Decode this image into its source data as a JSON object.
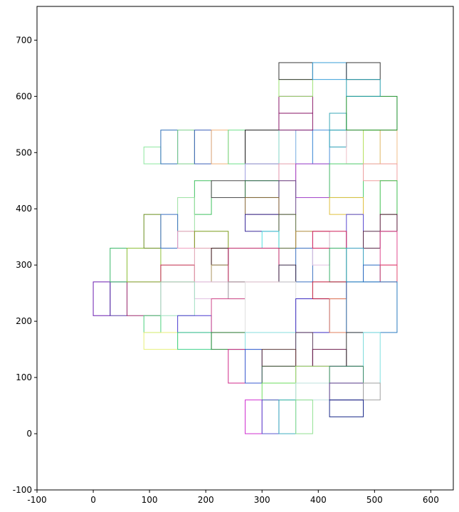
{
  "chart_data": {
    "type": "rectangles",
    "title": "",
    "xlabel": "",
    "ylabel": "",
    "xlim": [
      -100,
      640
    ],
    "ylim": [
      -100,
      760
    ],
    "xticks": [
      -100,
      0,
      100,
      200,
      300,
      400,
      500,
      600
    ],
    "yticks": [
      -100,
      0,
      100,
      200,
      300,
      400,
      500,
      600,
      700
    ],
    "grid": false,
    "rects": [
      {
        "x": 0,
        "y": 210,
        "w": 30,
        "h": 60,
        "color": "#6a1bb0"
      },
      {
        "x": 30,
        "y": 210,
        "w": 30,
        "h": 60,
        "color": "#5b3ea8"
      },
      {
        "x": 60,
        "y": 210,
        "w": 60,
        "h": 60,
        "color": "#9c2a6e"
      },
      {
        "x": 30,
        "y": 270,
        "w": 30,
        "h": 60,
        "color": "#3cb86a"
      },
      {
        "x": 60,
        "y": 270,
        "w": 60,
        "h": 60,
        "color": "#8fbf3a"
      },
      {
        "x": 90,
        "y": 330,
        "w": 30,
        "h": 60,
        "color": "#6a8f1e"
      },
      {
        "x": 90,
        "y": 180,
        "w": 30,
        "h": 30,
        "color": "#4bd17e"
      },
      {
        "x": 90,
        "y": 150,
        "w": 60,
        "h": 30,
        "color": "#e8f07a"
      },
      {
        "x": 90,
        "y": 480,
        "w": 30,
        "h": 30,
        "color": "#8ee8a0"
      },
      {
        "x": 120,
        "y": 480,
        "w": 30,
        "h": 60,
        "color": "#2e6fb8"
      },
      {
        "x": 150,
        "y": 480,
        "w": 30,
        "h": 60,
        "color": "#7ccf8a"
      },
      {
        "x": 180,
        "y": 480,
        "w": 30,
        "h": 60,
        "color": "#3a5fb8"
      },
      {
        "x": 210,
        "y": 480,
        "w": 30,
        "h": 60,
        "color": "#f0b27a"
      },
      {
        "x": 240,
        "y": 480,
        "w": 30,
        "h": 60,
        "color": "#6ee08a"
      },
      {
        "x": 270,
        "y": 480,
        "w": 60,
        "h": 60,
        "color": "#1a1a1a"
      },
      {
        "x": 330,
        "y": 480,
        "w": 30,
        "h": 60,
        "color": "#9ef0e0"
      },
      {
        "x": 360,
        "y": 480,
        "w": 30,
        "h": 60,
        "color": "#8ab0e8"
      },
      {
        "x": 390,
        "y": 480,
        "w": 30,
        "h": 60,
        "color": "#4a90d8"
      },
      {
        "x": 420,
        "y": 510,
        "w": 30,
        "h": 30,
        "color": "#2aa0b8"
      },
      {
        "x": 420,
        "y": 540,
        "w": 30,
        "h": 30,
        "color": "#3aa8b8"
      },
      {
        "x": 450,
        "y": 480,
        "w": 30,
        "h": 60,
        "color": "#f0c0c8"
      },
      {
        "x": 480,
        "y": 480,
        "w": 30,
        "h": 60,
        "color": "#b8e060"
      },
      {
        "x": 510,
        "y": 480,
        "w": 30,
        "h": 60,
        "color": "#f0c08a"
      },
      {
        "x": 450,
        "y": 540,
        "w": 90,
        "h": 60,
        "color": "#1a8f2a"
      },
      {
        "x": 330,
        "y": 540,
        "w": 60,
        "h": 30,
        "color": "#8a1a6a"
      },
      {
        "x": 330,
        "y": 570,
        "w": 60,
        "h": 30,
        "color": "#8a1a6a"
      },
      {
        "x": 330,
        "y": 600,
        "w": 60,
        "h": 30,
        "color": "#9ae070"
      },
      {
        "x": 330,
        "y": 630,
        "w": 60,
        "h": 30,
        "color": "#3a3a3a"
      },
      {
        "x": 390,
        "y": 630,
        "w": 60,
        "h": 30,
        "color": "#3aa0d8"
      },
      {
        "x": 450,
        "y": 630,
        "w": 60,
        "h": 30,
        "color": "#3a3a3a"
      },
      {
        "x": 450,
        "y": 600,
        "w": 60,
        "h": 30,
        "color": "#2aa0b0"
      },
      {
        "x": 270,
        "y": 450,
        "w": 60,
        "h": 30,
        "color": "#a0a0e0"
      },
      {
        "x": 330,
        "y": 450,
        "w": 30,
        "h": 30,
        "color": "#f0a0b0"
      },
      {
        "x": 360,
        "y": 420,
        "w": 60,
        "h": 60,
        "color": "#a040c8"
      },
      {
        "x": 420,
        "y": 420,
        "w": 60,
        "h": 60,
        "color": "#50d070"
      },
      {
        "x": 480,
        "y": 450,
        "w": 60,
        "h": 30,
        "color": "#f0a0a0"
      },
      {
        "x": 510,
        "y": 390,
        "w": 30,
        "h": 60,
        "color": "#40c050"
      },
      {
        "x": 180,
        "y": 390,
        "w": 30,
        "h": 60,
        "color": "#40c060"
      },
      {
        "x": 210,
        "y": 420,
        "w": 60,
        "h": 30,
        "color": "#4a4a4a"
      },
      {
        "x": 270,
        "y": 420,
        "w": 60,
        "h": 30,
        "color": "#2a6a3a"
      },
      {
        "x": 330,
        "y": 390,
        "w": 30,
        "h": 60,
        "color": "#6a4a8a"
      },
      {
        "x": 150,
        "y": 360,
        "w": 30,
        "h": 60,
        "color": "#9ae0a0"
      },
      {
        "x": 270,
        "y": 390,
        "w": 60,
        "h": 30,
        "color": "#8a6a3a"
      },
      {
        "x": 420,
        "y": 390,
        "w": 60,
        "h": 30,
        "color": "#e0c040"
      },
      {
        "x": 120,
        "y": 330,
        "w": 30,
        "h": 60,
        "color": "#3a70c0"
      },
      {
        "x": 150,
        "y": 330,
        "w": 30,
        "h": 30,
        "color": "#f0a0c0"
      },
      {
        "x": 180,
        "y": 330,
        "w": 60,
        "h": 30,
        "color": "#7a9a1a"
      },
      {
        "x": 270,
        "y": 360,
        "w": 60,
        "h": 30,
        "color": "#3a2a9a"
      },
      {
        "x": 330,
        "y": 330,
        "w": 30,
        "h": 60,
        "color": "#5a6a3a"
      },
      {
        "x": 360,
        "y": 330,
        "w": 60,
        "h": 30,
        "color": "#b08a3a"
      },
      {
        "x": 450,
        "y": 330,
        "w": 30,
        "h": 60,
        "color": "#5a4ad0"
      },
      {
        "x": 480,
        "y": 330,
        "w": 30,
        "h": 30,
        "color": "#5a2a4a"
      },
      {
        "x": 510,
        "y": 360,
        "w": 30,
        "h": 30,
        "color": "#5a1a3a"
      },
      {
        "x": 510,
        "y": 300,
        "w": 30,
        "h": 60,
        "color": "#e04a90"
      },
      {
        "x": 300,
        "y": 330,
        "w": 30,
        "h": 30,
        "color": "#50e0e0"
      },
      {
        "x": 360,
        "y": 270,
        "w": 30,
        "h": 60,
        "color": "#3a70c0"
      },
      {
        "x": 390,
        "y": 300,
        "w": 30,
        "h": 60,
        "color": "#e0c0e0"
      },
      {
        "x": 390,
        "y": 330,
        "w": 60,
        "h": 30,
        "color": "#d0205a"
      },
      {
        "x": 420,
        "y": 270,
        "w": 30,
        "h": 60,
        "color": "#3ab06a"
      },
      {
        "x": 450,
        "y": 270,
        "w": 30,
        "h": 60,
        "color": "#3aa0c0"
      },
      {
        "x": 480,
        "y": 270,
        "w": 30,
        "h": 30,
        "color": "#2a6ac0"
      },
      {
        "x": 510,
        "y": 270,
        "w": 30,
        "h": 30,
        "color": "#e04a70"
      },
      {
        "x": 120,
        "y": 270,
        "w": 60,
        "h": 30,
        "color": "#c02a4a"
      },
      {
        "x": 180,
        "y": 270,
        "w": 30,
        "h": 60,
        "color": "#e0a0b0"
      },
      {
        "x": 210,
        "y": 300,
        "w": 30,
        "h": 30,
        "color": "#3a1a1a"
      },
      {
        "x": 210,
        "y": 270,
        "w": 30,
        "h": 30,
        "color": "#b0a06a"
      },
      {
        "x": 240,
        "y": 270,
        "w": 90,
        "h": 60,
        "color": "#c02a6a"
      },
      {
        "x": 330,
        "y": 270,
        "w": 30,
        "h": 30,
        "color": "#3a2a4a"
      },
      {
        "x": 180,
        "y": 240,
        "w": 60,
        "h": 30,
        "color": "#e0c0e0"
      },
      {
        "x": 240,
        "y": 240,
        "w": 30,
        "h": 30,
        "color": "#a0a0a0"
      },
      {
        "x": 120,
        "y": 210,
        "w": 60,
        "h": 60,
        "color": "#a0e0c0"
      },
      {
        "x": 150,
        "y": 180,
        "w": 60,
        "h": 30,
        "color": "#4a3ad0"
      },
      {
        "x": 210,
        "y": 180,
        "w": 60,
        "h": 60,
        "color": "#d04a8a"
      },
      {
        "x": 270,
        "y": 180,
        "w": 90,
        "h": 90,
        "color": "#e0e0e0"
      },
      {
        "x": 360,
        "y": 180,
        "w": 60,
        "h": 60,
        "color": "#3a2ac0"
      },
      {
        "x": 390,
        "y": 240,
        "w": 60,
        "h": 30,
        "color": "#c01a3a"
      },
      {
        "x": 420,
        "y": 180,
        "w": 30,
        "h": 60,
        "color": "#e08060"
      },
      {
        "x": 450,
        "y": 180,
        "w": 90,
        "h": 90,
        "color": "#2a7ac0"
      },
      {
        "x": 150,
        "y": 150,
        "w": 60,
        "h": 30,
        "color": "#3ad08a"
      },
      {
        "x": 210,
        "y": 150,
        "w": 60,
        "h": 30,
        "color": "#2a8a3a"
      },
      {
        "x": 270,
        "y": 150,
        "w": 90,
        "h": 30,
        "color": "#8ae0e0"
      },
      {
        "x": 360,
        "y": 120,
        "w": 30,
        "h": 60,
        "color": "#5a3a5a"
      },
      {
        "x": 390,
        "y": 120,
        "w": 60,
        "h": 30,
        "color": "#6a1a4a"
      },
      {
        "x": 450,
        "y": 120,
        "w": 30,
        "h": 60,
        "color": "#3a3a3a"
      },
      {
        "x": 480,
        "y": 90,
        "w": 30,
        "h": 90,
        "color": "#80e0e0"
      },
      {
        "x": 240,
        "y": 90,
        "w": 30,
        "h": 60,
        "color": "#d02a8a"
      },
      {
        "x": 270,
        "y": 90,
        "w": 30,
        "h": 60,
        "color": "#3a5ad0"
      },
      {
        "x": 300,
        "y": 120,
        "w": 60,
        "h": 30,
        "color": "#6a3a3a"
      },
      {
        "x": 300,
        "y": 90,
        "w": 60,
        "h": 30,
        "color": "#4a6a4a"
      },
      {
        "x": 360,
        "y": 90,
        "w": 60,
        "h": 30,
        "color": "#a0e070"
      },
      {
        "x": 420,
        "y": 90,
        "w": 60,
        "h": 30,
        "color": "#3a8a6a"
      },
      {
        "x": 300,
        "y": 60,
        "w": 60,
        "h": 30,
        "color": "#70e060"
      },
      {
        "x": 360,
        "y": 60,
        "w": 60,
        "h": 30,
        "color": "#c0e0e0"
      },
      {
        "x": 420,
        "y": 60,
        "w": 60,
        "h": 30,
        "color": "#5a3a8a"
      },
      {
        "x": 480,
        "y": 60,
        "w": 30,
        "h": 30,
        "color": "#a0a0a0"
      },
      {
        "x": 420,
        "y": 30,
        "w": 60,
        "h": 30,
        "color": "#1a2a8a"
      },
      {
        "x": 270,
        "y": 0,
        "w": 30,
        "h": 60,
        "color": "#d030d0"
      },
      {
        "x": 300,
        "y": 0,
        "w": 30,
        "h": 60,
        "color": "#5a5ad0"
      },
      {
        "x": 330,
        "y": 0,
        "w": 30,
        "h": 60,
        "color": "#40b0c0"
      },
      {
        "x": 360,
        "y": 0,
        "w": 30,
        "h": 60,
        "color": "#90e090"
      }
    ]
  }
}
